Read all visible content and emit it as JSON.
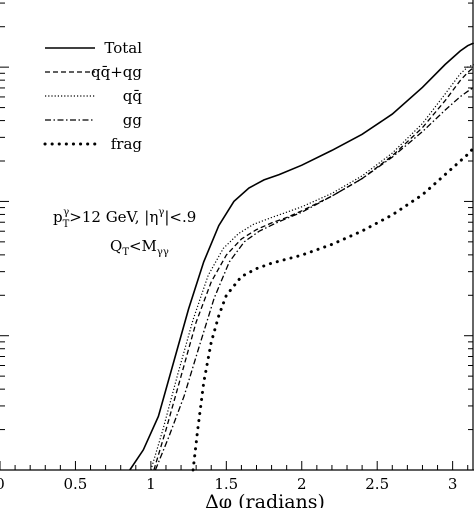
{
  "chart_data": {
    "type": "line",
    "title": "",
    "xlabel": "Δφ (radians)",
    "ylabel": "",
    "xlim": [
      0,
      3.1416
    ],
    "ylog": true,
    "ylim_decades": [
      0,
      3.5
    ],
    "x_ticks": [
      "0",
      "0.5",
      "1",
      "1.5",
      "2",
      "2.5",
      "3"
    ],
    "x_tick_values": [
      0,
      0.5,
      1,
      1.5,
      2,
      2.5,
      3
    ],
    "legend_position": "top-left",
    "annotations": [
      "p_T^γ>12 GeV, |η^γ|<.9",
      "Q_T<M_γγ"
    ],
    "series": [
      {
        "name": "Total",
        "style": "solid",
        "x": [
          0.86,
          0.95,
          1.05,
          1.15,
          1.25,
          1.35,
          1.45,
          1.55,
          1.65,
          1.75,
          1.85,
          2.0,
          2.2,
          2.4,
          2.6,
          2.8,
          2.95,
          3.05,
          3.1,
          3.14
        ],
        "values": [
          0,
          0.15,
          0.4,
          0.8,
          1.2,
          1.55,
          1.82,
          2.0,
          2.1,
          2.16,
          2.2,
          2.27,
          2.38,
          2.5,
          2.65,
          2.85,
          3.02,
          3.12,
          3.16,
          3.18
        ]
      },
      {
        "name": "qq̄+qg",
        "style": "dashed",
        "x": [
          1.02,
          1.1,
          1.2,
          1.3,
          1.4,
          1.5,
          1.6,
          1.7,
          1.8,
          1.9,
          2.0,
          2.2,
          2.4,
          2.6,
          2.8,
          2.95,
          3.05,
          3.1,
          3.14
        ],
        "values": [
          0,
          0.3,
          0.7,
          1.1,
          1.4,
          1.6,
          1.72,
          1.79,
          1.84,
          1.88,
          1.93,
          2.04,
          2.17,
          2.34,
          2.55,
          2.75,
          2.9,
          2.96,
          3.0
        ]
      },
      {
        "name": "qq̄",
        "style": "dotted",
        "x": [
          1.0,
          1.08,
          1.18,
          1.28,
          1.38,
          1.48,
          1.58,
          1.68,
          1.8,
          1.9,
          2.0,
          2.2,
          2.4,
          2.6,
          2.8,
          2.95,
          3.05,
          3.1,
          3.14
        ],
        "values": [
          0,
          0.3,
          0.72,
          1.12,
          1.45,
          1.65,
          1.76,
          1.83,
          1.88,
          1.92,
          1.96,
          2.06,
          2.19,
          2.36,
          2.58,
          2.8,
          2.95,
          3.0,
          3.02
        ]
      },
      {
        "name": "gg",
        "style": "dashdot",
        "x": [
          1.03,
          1.12,
          1.22,
          1.32,
          1.42,
          1.52,
          1.62,
          1.72,
          1.85,
          2.0,
          2.2,
          2.4,
          2.6,
          2.8,
          2.95,
          3.05,
          3.1,
          3.14
        ],
        "values": [
          0,
          0.25,
          0.55,
          0.92,
          1.28,
          1.55,
          1.7,
          1.78,
          1.85,
          1.92,
          2.04,
          2.17,
          2.33,
          2.52,
          2.68,
          2.78,
          2.82,
          2.85
        ]
      },
      {
        "name": "frag",
        "style": "bigdot",
        "x": [
          1.28,
          1.31,
          1.35,
          1.4,
          1.45,
          1.5,
          1.6,
          1.7,
          1.8,
          2.0,
          2.2,
          2.4,
          2.6,
          2.8,
          2.95,
          3.05,
          3.1,
          3.14
        ],
        "values": [
          0,
          0.3,
          0.65,
          0.95,
          1.15,
          1.3,
          1.44,
          1.5,
          1.54,
          1.6,
          1.68,
          1.78,
          1.9,
          2.05,
          2.2,
          2.3,
          2.35,
          2.4
        ]
      }
    ]
  }
}
